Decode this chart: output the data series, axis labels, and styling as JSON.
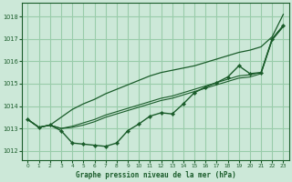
{
  "title": "Graphe pression niveau de la mer (hPa)",
  "bg_color": "#cce8d8",
  "grid_color": "#99ccaa",
  "line_color": "#1a5c2a",
  "x_ticks": [
    0,
    1,
    2,
    3,
    4,
    5,
    6,
    7,
    8,
    9,
    10,
    11,
    12,
    13,
    14,
    15,
    16,
    17,
    18,
    19,
    20,
    21,
    22,
    23
  ],
  "y_ticks": [
    1012,
    1013,
    1014,
    1015,
    1016,
    1017,
    1018
  ],
  "ylim": [
    1011.6,
    1018.6
  ],
  "xlim": [
    -0.5,
    23.5
  ],
  "series_marked": [
    1013.4,
    1013.05,
    1013.15,
    1012.9,
    1012.35,
    1012.3,
    1012.25,
    1012.2,
    1012.35,
    1012.9,
    1013.2,
    1013.55,
    1013.7,
    1013.65,
    1014.1,
    1014.6,
    1014.85,
    1015.05,
    1015.3,
    1015.8,
    1015.45,
    1015.5,
    1017.0,
    1017.6
  ],
  "series_smooth1": [
    1013.4,
    1013.05,
    1013.15,
    1013.0,
    1013.05,
    1013.15,
    1013.3,
    1013.5,
    1013.65,
    1013.8,
    1013.95,
    1014.1,
    1014.25,
    1014.35,
    1014.5,
    1014.65,
    1014.8,
    1014.95,
    1015.1,
    1015.25,
    1015.3,
    1015.45,
    1016.95,
    1017.55
  ],
  "series_smooth2": [
    1013.4,
    1013.05,
    1013.15,
    1013.0,
    1013.1,
    1013.25,
    1013.4,
    1013.6,
    1013.75,
    1013.9,
    1014.05,
    1014.2,
    1014.35,
    1014.45,
    1014.6,
    1014.75,
    1014.9,
    1015.05,
    1015.2,
    1015.35,
    1015.4,
    1015.5,
    1017.0,
    1017.6
  ],
  "series_top": [
    1013.4,
    1013.05,
    1013.15,
    1013.5,
    1013.85,
    1014.1,
    1014.3,
    1014.55,
    1014.75,
    1014.95,
    1015.15,
    1015.35,
    1015.5,
    1015.6,
    1015.7,
    1015.8,
    1015.95,
    1016.1,
    1016.25,
    1016.4,
    1016.5,
    1016.65,
    1017.1,
    1018.1
  ]
}
